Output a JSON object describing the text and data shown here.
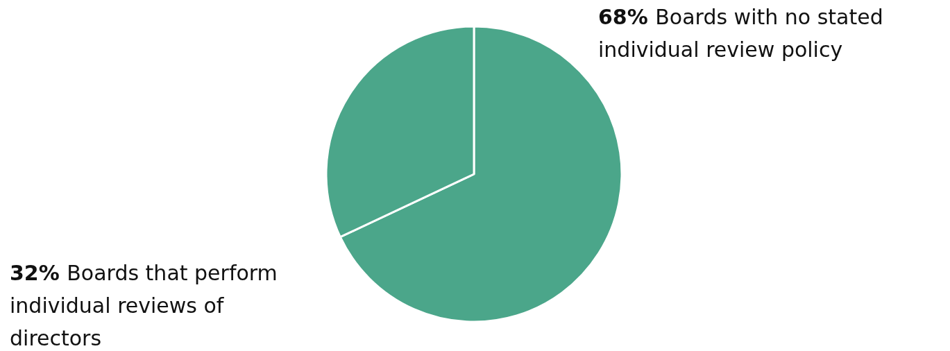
{
  "chart_data": {
    "type": "pie",
    "categories": [
      "Boards with no stated individual review policy",
      "Boards that perform individual reviews of directors"
    ],
    "values": [
      68,
      32
    ],
    "colors": [
      "#4ba68a",
      "#4ba68a"
    ],
    "value_labels": [
      "68%",
      "32%"
    ]
  }
}
